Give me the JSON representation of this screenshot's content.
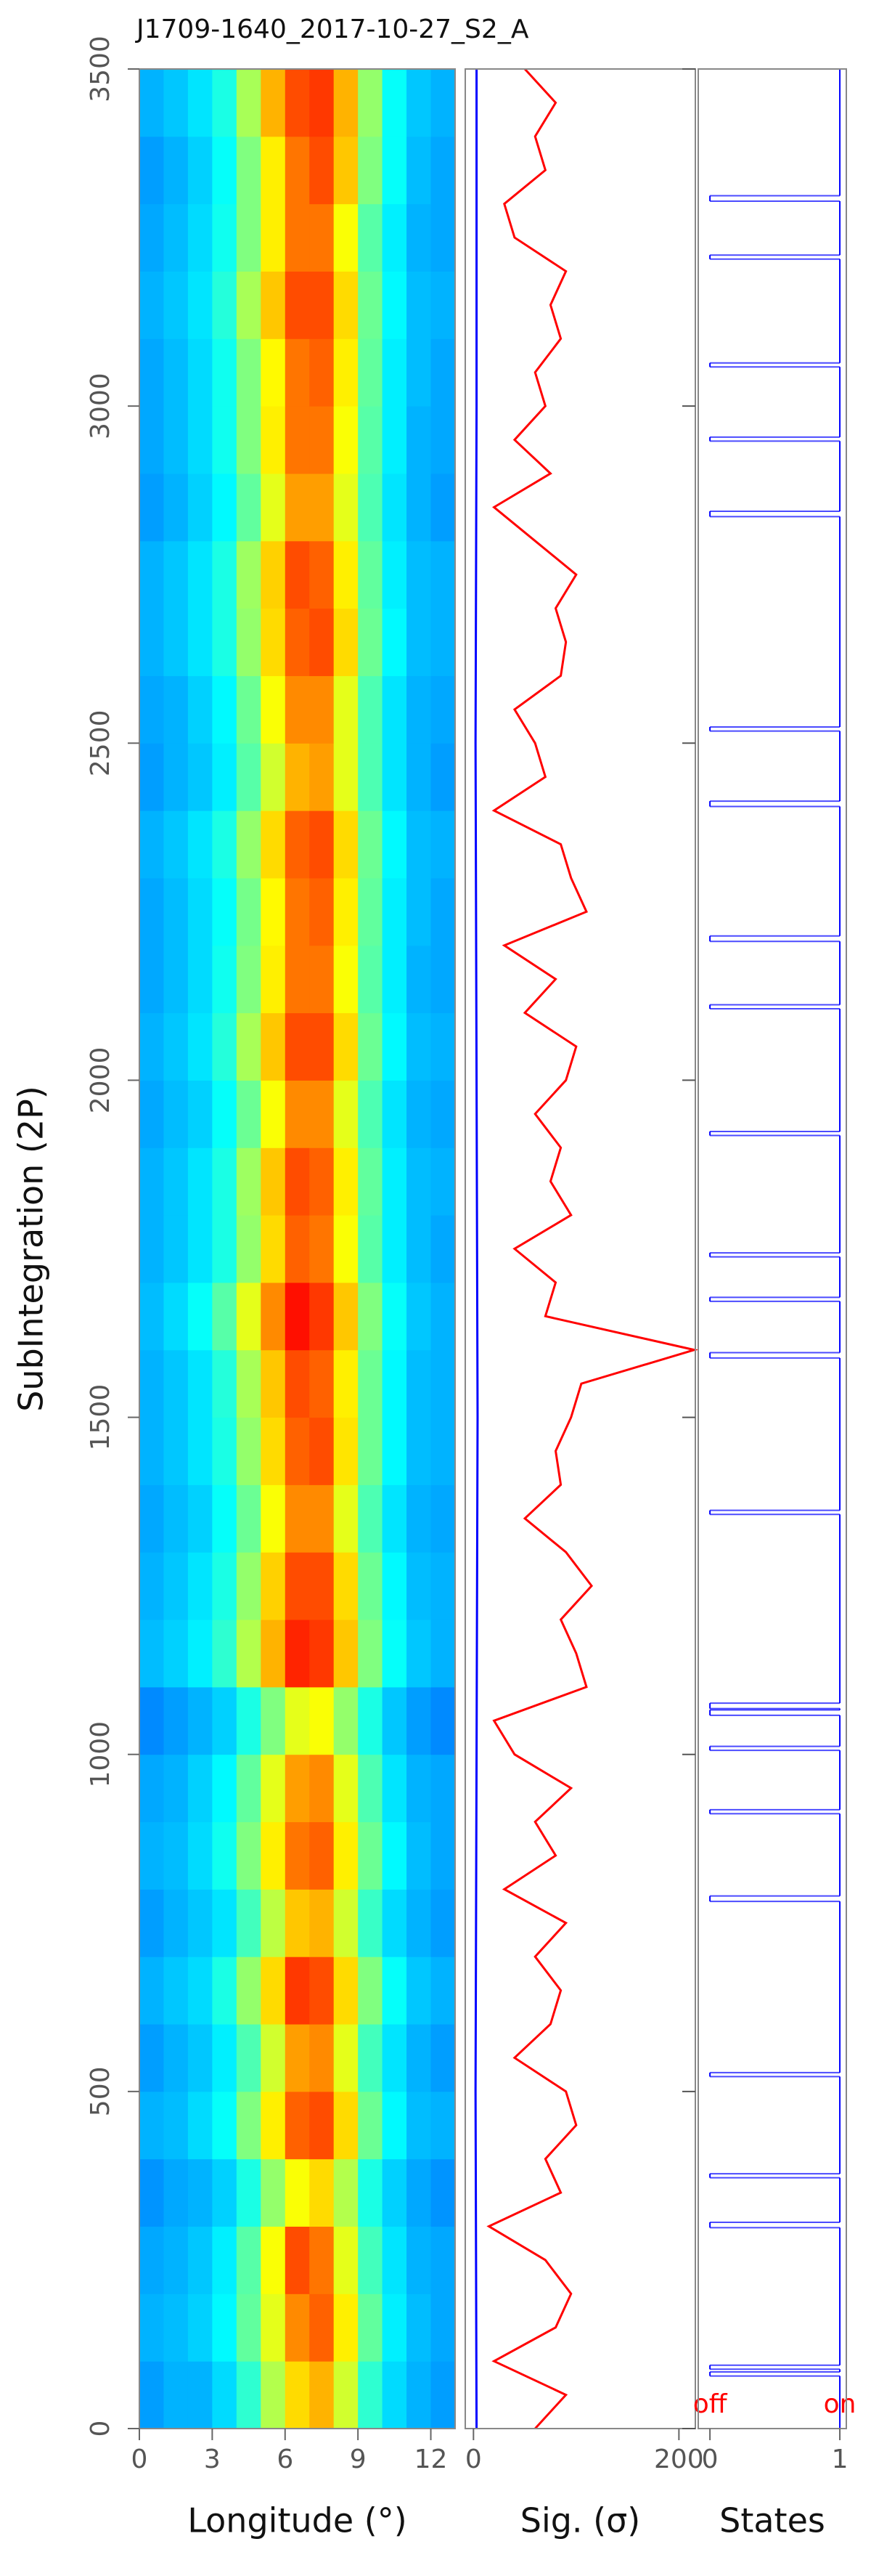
{
  "chart_data": [
    {
      "type": "heatmap",
      "title": "J1709-1640_2017-10-27_S2_A",
      "xlabel": "Longitude (°)",
      "ylabel": "SubIntegration (2P)",
      "xlim": [
        0,
        13
      ],
      "xticks": [
        0,
        3,
        6,
        9,
        12
      ],
      "ylim": [
        0,
        3500
      ],
      "yticks": [
        0,
        500,
        1000,
        1500,
        2000,
        2500,
        3000,
        3500
      ],
      "x_edges": [
        0,
        1,
        2,
        3,
        4,
        5,
        6,
        7,
        8,
        9,
        10,
        11,
        12,
        13
      ],
      "y_edges": [
        0,
        100,
        200,
        300,
        400,
        500,
        600,
        700,
        800,
        900,
        1000,
        1100,
        1200,
        1300,
        1400,
        1500,
        1600,
        1700,
        1800,
        1900,
        2000,
        2100,
        2200,
        2300,
        2400,
        2500,
        2600,
        2700,
        2800,
        2900,
        3000,
        3100,
        3200,
        3300,
        3400,
        3500
      ],
      "z": [
        [
          0.28,
          0.3,
          0.3,
          0.34,
          0.42,
          0.55,
          0.66,
          0.7,
          0.58,
          0.42,
          0.34,
          0.3,
          0.28
        ],
        [
          0.3,
          0.31,
          0.33,
          0.37,
          0.47,
          0.6,
          0.74,
          0.78,
          0.64,
          0.47,
          0.36,
          0.31,
          0.29
        ],
        [
          0.29,
          0.3,
          0.32,
          0.36,
          0.46,
          0.62,
          0.8,
          0.76,
          0.6,
          0.44,
          0.35,
          0.3,
          0.29
        ],
        [
          0.27,
          0.29,
          0.3,
          0.33,
          0.4,
          0.52,
          0.62,
          0.66,
          0.55,
          0.4,
          0.33,
          0.29,
          0.27
        ],
        [
          0.3,
          0.31,
          0.34,
          0.38,
          0.5,
          0.64,
          0.78,
          0.8,
          0.66,
          0.48,
          0.37,
          0.31,
          0.3
        ],
        [
          0.28,
          0.3,
          0.32,
          0.36,
          0.45,
          0.58,
          0.72,
          0.74,
          0.6,
          0.44,
          0.35,
          0.3,
          0.28
        ],
        [
          0.3,
          0.32,
          0.34,
          0.4,
          0.52,
          0.66,
          0.82,
          0.8,
          0.66,
          0.5,
          0.38,
          0.32,
          0.3
        ],
        [
          0.28,
          0.3,
          0.32,
          0.35,
          0.44,
          0.56,
          0.68,
          0.7,
          0.58,
          0.43,
          0.34,
          0.3,
          0.28
        ],
        [
          0.3,
          0.31,
          0.34,
          0.39,
          0.5,
          0.64,
          0.76,
          0.78,
          0.64,
          0.48,
          0.37,
          0.31,
          0.29
        ],
        [
          0.29,
          0.3,
          0.33,
          0.37,
          0.47,
          0.6,
          0.72,
          0.74,
          0.6,
          0.45,
          0.35,
          0.3,
          0.29
        ],
        [
          0.26,
          0.28,
          0.3,
          0.33,
          0.4,
          0.5,
          0.6,
          0.62,
          0.52,
          0.4,
          0.32,
          0.28,
          0.26
        ],
        [
          0.31,
          0.33,
          0.36,
          0.42,
          0.55,
          0.7,
          0.84,
          0.82,
          0.68,
          0.5,
          0.38,
          0.32,
          0.3
        ],
        [
          0.3,
          0.32,
          0.35,
          0.4,
          0.52,
          0.67,
          0.8,
          0.8,
          0.66,
          0.48,
          0.37,
          0.31,
          0.3
        ],
        [
          0.29,
          0.31,
          0.33,
          0.38,
          0.48,
          0.62,
          0.74,
          0.74,
          0.6,
          0.45,
          0.35,
          0.3,
          0.29
        ],
        [
          0.3,
          0.32,
          0.35,
          0.4,
          0.52,
          0.66,
          0.78,
          0.8,
          0.65,
          0.48,
          0.37,
          0.31,
          0.3
        ],
        [
          0.3,
          0.32,
          0.35,
          0.41,
          0.54,
          0.68,
          0.8,
          0.78,
          0.64,
          0.48,
          0.37,
          0.31,
          0.3
        ],
        [
          0.31,
          0.34,
          0.38,
          0.46,
          0.6,
          0.74,
          0.86,
          0.82,
          0.68,
          0.5,
          0.38,
          0.32,
          0.3
        ],
        [
          0.3,
          0.32,
          0.35,
          0.4,
          0.52,
          0.66,
          0.78,
          0.76,
          0.62,
          0.46,
          0.36,
          0.31,
          0.29
        ],
        [
          0.3,
          0.32,
          0.35,
          0.4,
          0.53,
          0.68,
          0.8,
          0.78,
          0.64,
          0.47,
          0.36,
          0.31,
          0.3
        ],
        [
          0.29,
          0.31,
          0.33,
          0.38,
          0.48,
          0.62,
          0.74,
          0.74,
          0.6,
          0.45,
          0.35,
          0.3,
          0.29
        ],
        [
          0.3,
          0.32,
          0.35,
          0.41,
          0.54,
          0.68,
          0.8,
          0.8,
          0.66,
          0.48,
          0.37,
          0.31,
          0.3
        ],
        [
          0.29,
          0.31,
          0.34,
          0.39,
          0.5,
          0.64,
          0.76,
          0.76,
          0.62,
          0.46,
          0.36,
          0.3,
          0.29
        ],
        [
          0.29,
          0.31,
          0.34,
          0.38,
          0.49,
          0.63,
          0.76,
          0.78,
          0.64,
          0.47,
          0.36,
          0.31,
          0.29
        ],
        [
          0.3,
          0.32,
          0.35,
          0.4,
          0.52,
          0.66,
          0.78,
          0.8,
          0.66,
          0.48,
          0.37,
          0.31,
          0.3
        ],
        [
          0.28,
          0.3,
          0.32,
          0.36,
          0.46,
          0.58,
          0.7,
          0.72,
          0.6,
          0.45,
          0.35,
          0.3,
          0.28
        ],
        [
          0.29,
          0.3,
          0.33,
          0.37,
          0.48,
          0.62,
          0.74,
          0.74,
          0.6,
          0.45,
          0.35,
          0.3,
          0.29
        ],
        [
          0.3,
          0.32,
          0.35,
          0.4,
          0.52,
          0.66,
          0.78,
          0.8,
          0.66,
          0.48,
          0.37,
          0.31,
          0.3
        ],
        [
          0.3,
          0.32,
          0.35,
          0.4,
          0.53,
          0.67,
          0.8,
          0.78,
          0.64,
          0.47,
          0.36,
          0.31,
          0.3
        ],
        [
          0.28,
          0.3,
          0.33,
          0.37,
          0.47,
          0.6,
          0.72,
          0.72,
          0.6,
          0.45,
          0.35,
          0.3,
          0.28
        ],
        [
          0.29,
          0.31,
          0.34,
          0.39,
          0.5,
          0.64,
          0.76,
          0.76,
          0.62,
          0.46,
          0.36,
          0.3,
          0.29
        ],
        [
          0.29,
          0.31,
          0.34,
          0.39,
          0.5,
          0.63,
          0.76,
          0.78,
          0.64,
          0.47,
          0.36,
          0.31,
          0.29
        ],
        [
          0.3,
          0.32,
          0.35,
          0.41,
          0.54,
          0.68,
          0.8,
          0.8,
          0.66,
          0.48,
          0.37,
          0.31,
          0.3
        ],
        [
          0.29,
          0.31,
          0.34,
          0.39,
          0.5,
          0.64,
          0.76,
          0.76,
          0.62,
          0.46,
          0.36,
          0.3,
          0.29
        ],
        [
          0.28,
          0.3,
          0.33,
          0.38,
          0.5,
          0.64,
          0.76,
          0.8,
          0.68,
          0.5,
          0.38,
          0.31,
          0.29
        ],
        [
          0.3,
          0.32,
          0.35,
          0.4,
          0.54,
          0.7,
          0.8,
          0.82,
          0.7,
          0.52,
          0.38,
          0.32,
          0.3
        ]
      ]
    },
    {
      "type": "line",
      "xlabel": "Sig. (σ)",
      "xlim": [
        -8,
        216
      ],
      "xticks": [
        0,
        200
      ],
      "ylim": [
        0,
        3500
      ],
      "yticks": [
        0,
        500,
        1000,
        1500,
        2000,
        2500,
        3000,
        3500
      ],
      "series": [
        {
          "color": "#ff0000",
          "y": [
            0,
            50,
            100,
            150,
            200,
            250,
            300,
            350,
            400,
            450,
            500,
            550,
            600,
            650,
            700,
            750,
            800,
            850,
            900,
            950,
            1000,
            1050,
            1100,
            1150,
            1200,
            1250,
            1300,
            1350,
            1400,
            1450,
            1500,
            1550,
            1600,
            1650,
            1700,
            1750,
            1800,
            1850,
            1900,
            1950,
            2000,
            2050,
            2100,
            2150,
            2200,
            2250,
            2300,
            2350,
            2400,
            2450,
            2500,
            2550,
            2600,
            2650,
            2700,
            2750,
            2800,
            2850,
            2900,
            2950,
            3000,
            3050,
            3100,
            3150,
            3200,
            3250,
            3300,
            3350,
            3400,
            3450,
            3500
          ],
          "values": [
            60,
            90,
            20,
            80,
            95,
            70,
            15,
            85,
            70,
            100,
            90,
            40,
            75,
            85,
            60,
            90,
            30,
            80,
            60,
            95,
            40,
            20,
            110,
            100,
            85,
            115,
            90,
            50,
            85,
            80,
            95,
            105,
            215,
            70,
            80,
            40,
            95,
            75,
            85,
            60,
            90,
            100,
            50,
            80,
            30,
            110,
            95,
            85,
            20,
            70,
            60,
            40,
            85,
            90,
            80,
            100,
            60,
            20,
            75,
            40,
            70,
            60,
            85,
            75,
            90,
            40,
            30,
            70,
            60,
            80,
            50
          ]
        },
        {
          "color": "#0000ff",
          "y": [
            0,
            500,
            1000,
            1500,
            2000,
            2500,
            3000,
            3500
          ],
          "values": [
            3,
            2,
            3,
            4,
            3,
            2,
            3,
            3
          ]
        }
      ]
    },
    {
      "type": "step",
      "xlabel": "States",
      "xlim": [
        -0.09,
        1.05
      ],
      "xticks": [
        0,
        1
      ],
      "ylim": [
        0,
        3500
      ],
      "color": "#0000ff",
      "annotations": [
        {
          "text": "off",
          "x": 0
        },
        {
          "text": "on",
          "x": 1
        }
      ],
      "y": [
        0,
        78,
        84,
        88,
        94,
        298,
        306,
        372,
        378,
        522,
        528,
        782,
        790,
        912,
        918,
        1006,
        1012,
        1058,
        1066,
        1068,
        1076,
        1356,
        1362,
        1588,
        1596,
        1672,
        1678,
        1738,
        1744,
        1918,
        1924,
        2106,
        2112,
        2206,
        2214,
        2406,
        2414,
        2518,
        2524,
        2836,
        2844,
        2948,
        2954,
        3058,
        3064,
        3218,
        3224,
        3304,
        3312
      ],
      "values": [
        1,
        0,
        1,
        0,
        1,
        0,
        1,
        0,
        1,
        0,
        1,
        0,
        1,
        0,
        1,
        0,
        1,
        0,
        1,
        0,
        1,
        0,
        1,
        0,
        1,
        0,
        1,
        0,
        1,
        0,
        1,
        0,
        1,
        0,
        1,
        0,
        1,
        0,
        1,
        0,
        1,
        0,
        1,
        0,
        1,
        0,
        1,
        0,
        1
      ]
    }
  ]
}
